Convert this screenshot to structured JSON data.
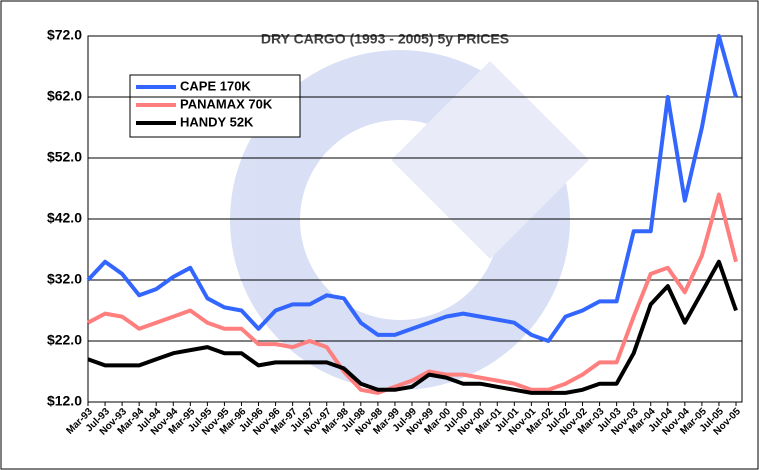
{
  "chart_data": {
    "type": "line",
    "title": "DRY CARGO (1993 - 2005) 5y PRICES",
    "categories": [
      "Mar-93",
      "Jul-93",
      "Nov-93",
      "Mar-94",
      "Jul-94",
      "Nov-94",
      "Mar-95",
      "Jul-95",
      "Nov-95",
      "Mar-96",
      "Jul-96",
      "Nov-96",
      "Mar-97",
      "Jul-97",
      "Nov-97",
      "Mar-98",
      "Jul-98",
      "Nov-98",
      "Mar-99",
      "Jul-99",
      "Nov-99",
      "Mar-00",
      "Jul-00",
      "Nov-00",
      "Mar-01",
      "Jul-01",
      "Nov-01",
      "Mar-02",
      "Jul-02",
      "Nov-02",
      "Mar-03",
      "Jul-03",
      "Nov-03",
      "Mar-04",
      "Jul-04",
      "Nov-04",
      "Mar-05",
      "Jul-05",
      "Nov-05"
    ],
    "series": [
      {
        "name": "CAPE 170K",
        "color": "#3366ff",
        "values": [
          32,
          35,
          33,
          29.5,
          30.5,
          32.5,
          34,
          29,
          27.5,
          27,
          24,
          27,
          28,
          28,
          29.5,
          29,
          25,
          23,
          23,
          24,
          25,
          26,
          26.5,
          26,
          25.5,
          25,
          23,
          22,
          26,
          27,
          28.5,
          28.5,
          40,
          40,
          62,
          45,
          57,
          72,
          62
        ]
      },
      {
        "name": "PANAMAX 70K",
        "color": "#ff7f7f",
        "values": [
          25,
          26.5,
          26,
          24,
          25,
          26,
          27,
          25,
          24,
          24,
          21.5,
          21.5,
          21,
          22,
          21,
          17,
          14,
          13.5,
          14.5,
          15.5,
          17,
          16.5,
          16.5,
          16,
          15.5,
          15,
          14,
          14,
          15,
          16.5,
          18.5,
          18.5,
          26,
          33,
          34,
          30,
          36,
          46,
          35
        ]
      },
      {
        "name": "HANDY 52K",
        "color": "#000000",
        "values": [
          19,
          18,
          18,
          18,
          19,
          20,
          20.5,
          21,
          20,
          20,
          18,
          18.5,
          18.5,
          18.5,
          18.5,
          17.5,
          15,
          14,
          14,
          14.5,
          16.5,
          16,
          15,
          15,
          14.5,
          14,
          13.5,
          13.5,
          13.5,
          14,
          15,
          15,
          20,
          28,
          31,
          25,
          30,
          35,
          27
        ]
      }
    ],
    "ylim": [
      12,
      72
    ],
    "yticks": [
      {
        "value": 12,
        "label": "$12.0"
      },
      {
        "value": 22,
        "label": "$22.0"
      },
      {
        "value": 32,
        "label": "$32.0"
      },
      {
        "value": 42,
        "label": "$42.0"
      },
      {
        "value": 52,
        "label": "$52.0"
      },
      {
        "value": 62,
        "label": "$62.0"
      },
      {
        "value": 72,
        "label": "$72.0"
      }
    ],
    "grid": true
  }
}
